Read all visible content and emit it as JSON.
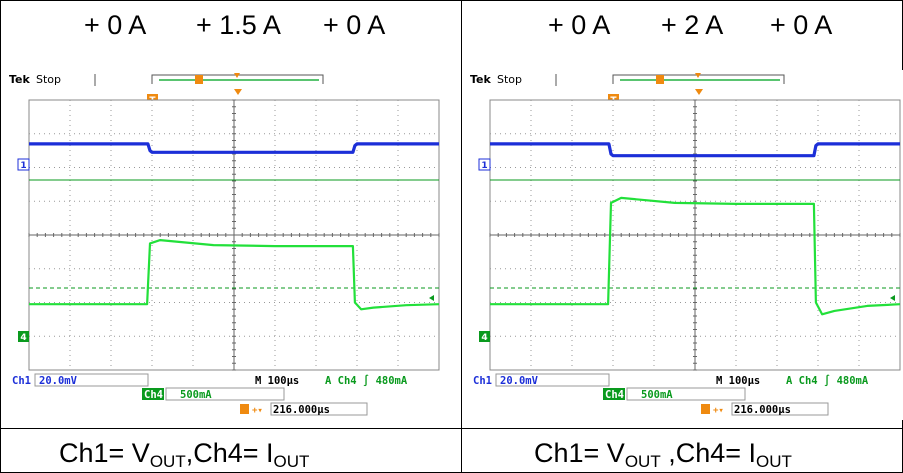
{
  "panels": [
    {
      "steps": [
        "+ 0 A",
        "+ 1.5 A",
        "+ 0 A"
      ],
      "caption": {
        "a": "Ch1= V",
        "a_sub": "OUT",
        "b": ",Ch4= I",
        "b_sub": "OUT"
      },
      "scope": {
        "brand": "Tek",
        "status": "Stop",
        "trigger_marker": "T",
        "ch1_marker": "1",
        "ch4_marker": "4",
        "ch1_label": "Ch1",
        "ch1_scale": "20.0mV",
        "ch4_label": "Ch4",
        "ch4_scale": "500mA",
        "timebase": "M 100µs",
        "trigger_info": "A  Ch4  ∫  480mA",
        "trigger_position": "216.000µs"
      }
    },
    {
      "steps": [
        "+ 0 A",
        "+ 2 A",
        "+ 0 A"
      ],
      "caption": {
        "a": "Ch1= V",
        "a_sub": "OUT",
        "b": " ,Ch4= I",
        "b_sub": "OUT"
      },
      "scope": {
        "brand": "Tek",
        "status": "Stop",
        "trigger_marker": "T",
        "ch1_marker": "1",
        "ch4_marker": "4",
        "ch1_label": "Ch1",
        "ch1_scale": "20.0mV",
        "ch4_label": "Ch4",
        "ch4_scale": "500mA",
        "timebase": "M 100µs",
        "trigger_info": "A  Ch4  ∫  480mA",
        "trigger_position": "216.000µs"
      }
    }
  ],
  "colors": {
    "ch1": "#1c2fd8",
    "ch4": "#22e03a",
    "ch4_dark": "#0a9a1e",
    "trigger": "#ef8a10"
  },
  "chart_data": [
    {
      "type": "line",
      "xlabel": "",
      "ylabel": "",
      "x_units": "divisions",
      "y_units": "divisions",
      "xlim": [
        0,
        10
      ],
      "ylim": [
        -4,
        4
      ],
      "grid": true,
      "series": [
        {
          "x": [
            0,
            2.9,
            2.95,
            3.0,
            7.9,
            7.95,
            8.0,
            10
          ],
          "values": [
            2.7,
            2.7,
            2.5,
            2.45,
            2.45,
            2.65,
            2.7,
            2.7
          ]
        },
        {
          "x": [
            0,
            2.88,
            2.95,
            3.2,
            4.5,
            6.0,
            7.9,
            7.95,
            8.1,
            8.4,
            9.2,
            10
          ],
          "values": [
            -2.05,
            -2.05,
            -0.25,
            -0.15,
            -0.3,
            -0.33,
            -0.33,
            -2.0,
            -2.2,
            -2.15,
            -2.08,
            -2.05
          ]
        }
      ]
    },
    {
      "type": "line",
      "xlabel": "",
      "ylabel": "",
      "x_units": "divisions",
      "y_units": "divisions",
      "xlim": [
        0,
        10
      ],
      "ylim": [
        -4,
        4
      ],
      "grid": true,
      "series": [
        {
          "x": [
            0,
            2.9,
            2.95,
            3.0,
            7.9,
            7.95,
            8.0,
            10
          ],
          "values": [
            2.7,
            2.7,
            2.4,
            2.35,
            2.35,
            2.65,
            2.7,
            2.7
          ]
        },
        {
          "x": [
            0,
            2.88,
            2.95,
            3.2,
            4.5,
            6.0,
            7.9,
            7.95,
            8.1,
            8.4,
            9.2,
            10
          ],
          "values": [
            -2.05,
            -2.05,
            0.95,
            1.1,
            0.95,
            0.92,
            0.92,
            -2.0,
            -2.35,
            -2.25,
            -2.1,
            -2.05
          ]
        }
      ]
    }
  ]
}
